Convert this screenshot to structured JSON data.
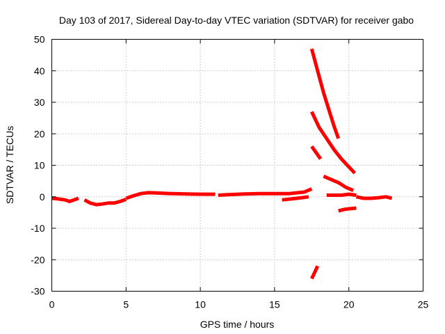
{
  "chart_data": {
    "type": "scatter",
    "title": "Day 103 of 2017, Sidereal Day-to-day VTEC variation (SDTVAR) for receiver gabo",
    "xlabel": "GPS time / hours",
    "ylabel": "SDTVAR / TECUs",
    "xlim": [
      0,
      25
    ],
    "ylim": [
      -30,
      50
    ],
    "xticks": [
      0,
      5,
      10,
      15,
      20,
      25
    ],
    "yticks": [
      -30,
      -20,
      -10,
      0,
      10,
      20,
      30,
      40,
      50
    ],
    "grid": true,
    "color": "#ff0000",
    "series": [
      {
        "name": "main-trace",
        "x": [
          0.0,
          0.3,
          0.6,
          0.9,
          1.2,
          1.5,
          1.8
        ],
        "y": [
          -0.5,
          -0.6,
          -0.8,
          -1.0,
          -1.5,
          -1.0,
          -0.5
        ]
      },
      {
        "name": "main-trace",
        "x": [
          2.2,
          2.6,
          3.0,
          3.4,
          3.8,
          4.2,
          4.6,
          5.0
        ],
        "y": [
          -1.0,
          -2.0,
          -2.5,
          -2.3,
          -2.0,
          -2.0,
          -1.5,
          -0.8
        ]
      },
      {
        "name": "main-trace",
        "x": [
          5.0,
          5.5,
          6.0,
          6.5,
          7.0,
          8.0,
          9.0,
          10.0,
          11.0
        ],
        "y": [
          -0.5,
          0.3,
          1.0,
          1.3,
          1.2,
          1.0,
          0.9,
          0.8,
          0.8
        ]
      },
      {
        "name": "main-trace",
        "x": [
          11.2,
          12.0,
          13.0,
          14.0,
          15.0,
          16.0,
          17.0,
          17.5
        ],
        "y": [
          0.5,
          0.7,
          0.9,
          1.0,
          1.0,
          1.0,
          1.5,
          2.5
        ]
      },
      {
        "name": "main-trace",
        "x": [
          15.5,
          16.5,
          17.3
        ],
        "y": [
          -1.0,
          -0.5,
          0.0
        ]
      },
      {
        "name": "steep-arc-upper",
        "x": [
          17.5,
          17.9,
          18.3,
          18.7,
          19.0,
          19.3
        ],
        "y": [
          47,
          40,
          33,
          27,
          22.5,
          18.5
        ]
      },
      {
        "name": "steep-arc-middle",
        "x": [
          17.5,
          18.0,
          18.5,
          19.0,
          19.5,
          20.0,
          20.4
        ],
        "y": [
          27,
          22,
          18.5,
          15,
          12,
          9.5,
          7.5
        ]
      },
      {
        "name": "short-arc",
        "x": [
          17.5,
          17.8,
          18.1
        ],
        "y": [
          16,
          14,
          12
        ]
      },
      {
        "name": "fading-arc",
        "x": [
          18.3,
          18.8,
          19.3,
          19.8,
          20.3
        ],
        "y": [
          6.5,
          5.5,
          4.5,
          3.0,
          2.0
        ]
      },
      {
        "name": "late-trace",
        "x": [
          18.5,
          19.0,
          19.5,
          20.0,
          20.5
        ],
        "y": [
          0.5,
          0.5,
          0.5,
          0.8,
          0.5
        ]
      },
      {
        "name": "late-trace",
        "x": [
          20.5,
          21.0,
          21.5,
          22.0,
          22.5,
          22.9
        ],
        "y": [
          0.0,
          -0.5,
          -0.5,
          -0.3,
          0.0,
          -0.5
        ]
      },
      {
        "name": "negative-arc",
        "x": [
          19.3,
          19.7,
          20.1,
          20.5
        ],
        "y": [
          -4.5,
          -4.0,
          -3.8,
          -3.6
        ]
      },
      {
        "name": "deep-negative-arc",
        "x": [
          17.5,
          17.7,
          17.9
        ],
        "y": [
          -26,
          -24,
          -22
        ]
      }
    ]
  }
}
